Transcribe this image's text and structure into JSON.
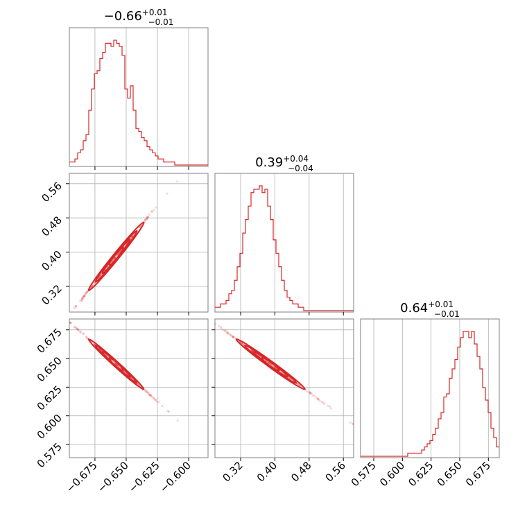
{
  "chart_data": {
    "type": "corner",
    "color": "#d62728",
    "parameters": [
      {
        "title_value": "−0.66",
        "title_plus": "+0.01",
        "title_minus": "−0.01",
        "range": [
          -0.6955,
          -0.5845
        ],
        "ticks": [
          -0.675,
          -0.65,
          -0.625,
          -0.6
        ],
        "tick_labels": [
          "−0.675",
          "−0.650",
          "−0.625",
          "−0.600"
        ],
        "hist": {
          "start": -0.6955,
          "end": -0.5845,
          "counts": [
            1,
            1,
            2,
            4,
            5,
            8,
            10,
            18,
            25,
            30,
            31,
            35,
            37,
            40,
            40,
            39,
            41,
            40,
            39,
            36,
            25,
            22,
            26,
            18,
            12,
            11,
            9,
            8,
            6,
            5,
            4,
            3,
            2,
            2,
            1,
            1,
            1,
            1,
            0,
            0,
            0,
            0,
            0,
            0,
            0,
            0,
            0,
            0,
            0,
            0
          ]
        }
      },
      {
        "title_value": "0.39",
        "title_plus": "+0.04",
        "title_minus": "−0.04",
        "range": [
          0.26,
          0.584
        ],
        "ticks": [
          0.32,
          0.4,
          0.48,
          0.56
        ],
        "tick_labels": [
          "0.32",
          "0.40",
          "0.48",
          "0.56"
        ],
        "hist": {
          "start": 0.26,
          "end": 0.584,
          "counts": [
            1,
            1,
            2,
            2,
            3,
            5,
            6,
            9,
            13,
            17,
            23,
            27,
            31,
            35,
            36,
            36,
            37,
            35,
            36,
            31,
            27,
            21,
            17,
            13,
            9,
            6,
            4,
            3,
            2,
            2,
            1,
            1,
            0,
            0,
            0,
            0,
            0,
            0,
            0,
            0,
            0,
            0,
            0,
            0,
            0,
            0,
            0,
            0,
            0,
            0
          ]
        }
      },
      {
        "title_value": "0.64",
        "title_plus": "+0.01",
        "title_minus": "−0.01",
        "range": [
          0.5635,
          0.6845
        ],
        "ticks": [
          0.575,
          0.6,
          0.625,
          0.65,
          0.675
        ],
        "tick_labels": [
          "0.575",
          "0.600",
          "0.625",
          "0.650",
          "0.675"
        ],
        "hist": {
          "start": 0.5635,
          "end": 0.6845,
          "counts": [
            0,
            0,
            0,
            0,
            0,
            0,
            0,
            0,
            0,
            0,
            0,
            0,
            0,
            0,
            0,
            0,
            0,
            1,
            1,
            1,
            1,
            1,
            2,
            3,
            4,
            5,
            7,
            9,
            12,
            14,
            19,
            20,
            25,
            28,
            31,
            35,
            38,
            40,
            40,
            38,
            40,
            36,
            32,
            28,
            22,
            18,
            14,
            9,
            6,
            3
          ]
        }
      }
    ],
    "correlations": {
      "1-0": 0.99,
      "2-0": -0.99,
      "2-1": -0.99
    }
  }
}
